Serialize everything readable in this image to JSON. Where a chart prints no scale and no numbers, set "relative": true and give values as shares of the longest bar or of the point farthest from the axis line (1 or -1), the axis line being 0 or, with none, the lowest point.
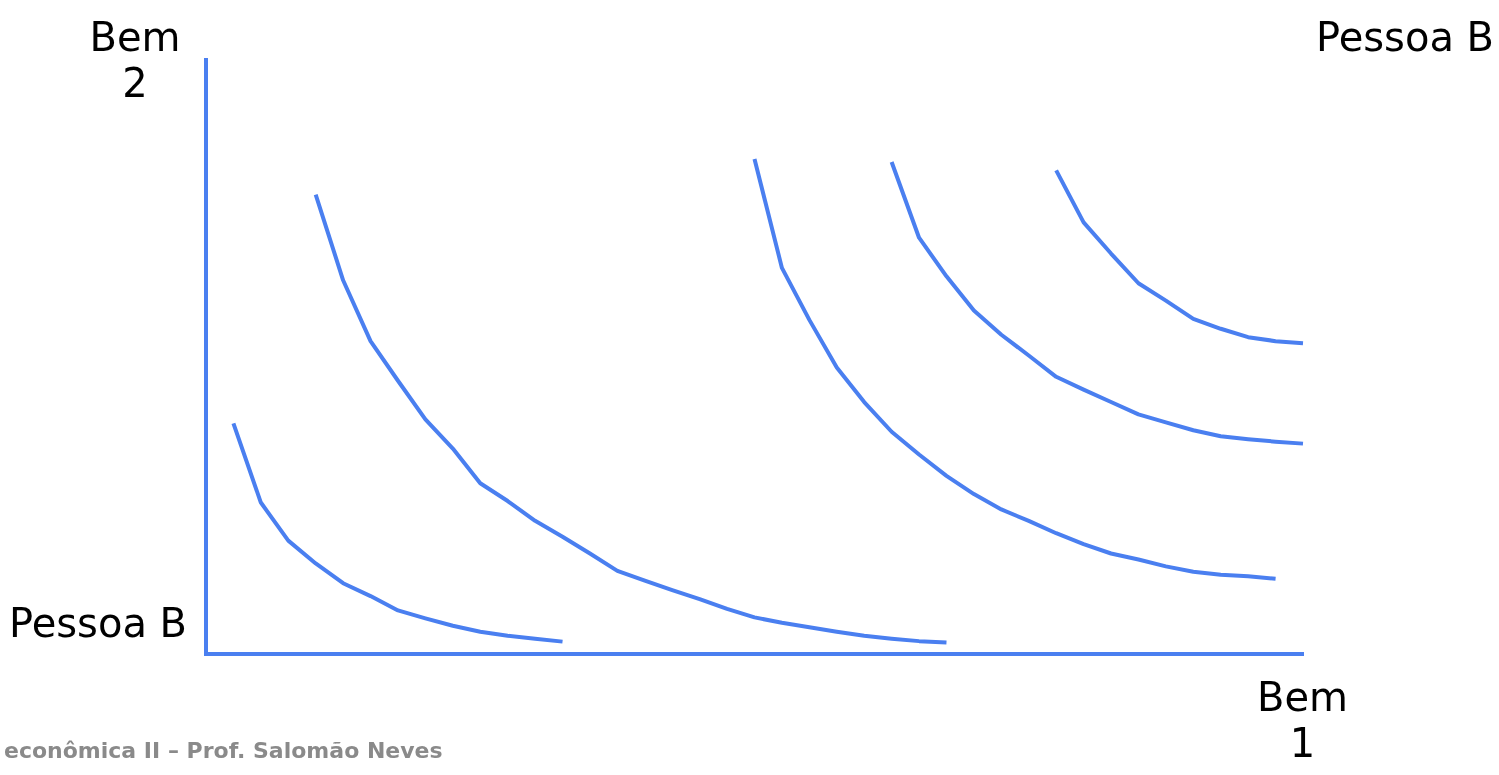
{
  "chart_data": {
    "type": "line",
    "relative": true,
    "xlabel": "Bem 1",
    "ylabel": "Bem 2",
    "marker": "none",
    "line_style": "solid",
    "grid": false,
    "legend": false,
    "annotations": [
      "Pessoa B",
      "Pessoa B",
      "econômica II – Prof. Salomão Neves"
    ],
    "categories": [
      null,
      null,
      null,
      null,
      null,
      null,
      null,
      null,
      null,
      null,
      null,
      null,
      null,
      null,
      null,
      null,
      null,
      null,
      null,
      null,
      null,
      null,
      null,
      null,
      null,
      null,
      null,
      null,
      null,
      null,
      null,
      null,
      null,
      null,
      null,
      null,
      null,
      null,
      null,
      null,
      null
    ],
    "series": [
      {
        "color": "#4a7ff0",
        "values": [
          null,
          0.466,
          0.306,
          0.229,
          0.183,
          0.143,
          0.117,
          0.088,
          0.072,
          0.057,
          0.045,
          0.037,
          0.031,
          0.025,
          null,
          null,
          null,
          null,
          null,
          null,
          null,
          null,
          null,
          null,
          null,
          null,
          null,
          null,
          null,
          null,
          null,
          null,
          null,
          null,
          null,
          null,
          null,
          null,
          null,
          null,
          null
        ]
      },
      {
        "color": "#4a7ff0",
        "values": [
          null,
          null,
          null,
          null,
          0.928,
          0.755,
          0.632,
          0.552,
          0.474,
          0.415,
          0.345,
          0.309,
          0.269,
          0.237,
          0.203,
          0.168,
          0.148,
          0.129,
          0.111,
          0.091,
          0.074,
          0.063,
          0.054,
          0.045,
          0.037,
          0.031,
          0.026,
          0.023,
          null,
          null,
          null,
          null,
          null,
          null,
          null,
          null,
          null,
          null,
          null,
          null,
          null
        ]
      },
      {
        "color": "#4a7ff0",
        "values": [
          null,
          null,
          null,
          null,
          null,
          null,
          null,
          null,
          null,
          null,
          null,
          null,
          null,
          null,
          null,
          null,
          null,
          null,
          null,
          null,
          1,
          0.78,
          0.675,
          0.579,
          0.509,
          0.449,
          0.403,
          0.36,
          0.323,
          0.292,
          0.269,
          0.244,
          0.222,
          0.203,
          0.191,
          0.177,
          0.166,
          0.16,
          0.157,
          0.152,
          null
        ]
      },
      {
        "color": "#4a7ff0",
        "values": [
          null,
          null,
          null,
          null,
          null,
          null,
          null,
          null,
          null,
          null,
          null,
          null,
          null,
          null,
          null,
          null,
          null,
          null,
          null,
          null,
          null,
          null,
          null,
          null,
          null,
          0.994,
          0.841,
          0.763,
          0.694,
          0.645,
          0.603,
          0.56,
          0.534,
          0.509,
          0.484,
          0.468,
          0.452,
          0.44,
          0.434,
          0.429,
          0.425
        ]
      },
      {
        "color": "#4a7ff0",
        "values": [
          null,
          null,
          null,
          null,
          null,
          null,
          null,
          null,
          null,
          null,
          null,
          null,
          null,
          null,
          null,
          null,
          null,
          null,
          null,
          null,
          null,
          null,
          null,
          null,
          null,
          null,
          null,
          null,
          null,
          null,
          null,
          0.977,
          0.872,
          0.809,
          0.749,
          0.714,
          0.677,
          0.657,
          0.64,
          0.632,
          0.628
        ]
      }
    ]
  }
}
